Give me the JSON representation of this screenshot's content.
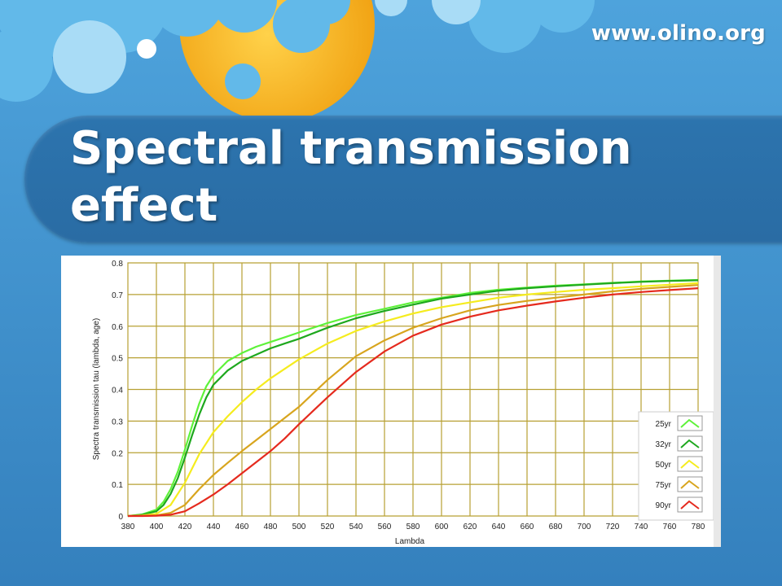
{
  "slide": {
    "site_url": "www.olino.org",
    "title": "Spectral transmission effect"
  },
  "colors": {
    "background": "#3a8cc8",
    "title_band": "#2a6ca4",
    "sun": "#f5b116",
    "cloud": "#5fb8e8",
    "grid": "#b7a033"
  },
  "chart_data": {
    "type": "line",
    "title": "",
    "xlabel": "Lambda",
    "ylabel": "Spectra transmission tau (lambda, age)",
    "xlim": [
      380,
      780
    ],
    "ylim": [
      0,
      0.8
    ],
    "xticks": [
      380,
      400,
      420,
      440,
      460,
      480,
      500,
      520,
      540,
      560,
      580,
      600,
      620,
      640,
      660,
      680,
      700,
      720,
      740,
      760,
      780
    ],
    "yticks": [
      0,
      0.1,
      0.2,
      0.3,
      0.4,
      0.5,
      0.6,
      0.7,
      0.8
    ],
    "yticklabels": [
      "0",
      "0.1",
      "0.2",
      "0.3",
      "0.4",
      "0.5",
      "0.6",
      "0.7",
      "0.8"
    ],
    "grid": true,
    "legend_position": "bottom-right",
    "series": [
      {
        "name": "25yr",
        "color": "#5ef23a",
        "x": [
          380,
          390,
          400,
          405,
          410,
          415,
          420,
          425,
          430,
          435,
          440,
          450,
          460,
          470,
          480,
          490,
          500,
          520,
          540,
          560,
          580,
          600,
          620,
          640,
          660,
          680,
          700,
          720,
          740,
          760,
          780
        ],
        "y": [
          0,
          0.005,
          0.02,
          0.045,
          0.085,
          0.14,
          0.21,
          0.285,
          0.355,
          0.41,
          0.445,
          0.49,
          0.515,
          0.535,
          0.55,
          0.565,
          0.58,
          0.61,
          0.635,
          0.655,
          0.675,
          0.69,
          0.705,
          0.715,
          0.722,
          0.728,
          0.732,
          0.737,
          0.741,
          0.744,
          0.746
        ]
      },
      {
        "name": "32yr",
        "color": "#1ea81e",
        "x": [
          380,
          390,
          400,
          405,
          410,
          415,
          420,
          425,
          430,
          435,
          440,
          450,
          460,
          470,
          480,
          490,
          500,
          520,
          540,
          560,
          580,
          600,
          620,
          640,
          660,
          680,
          700,
          720,
          740,
          760,
          780
        ],
        "y": [
          0,
          0.004,
          0.015,
          0.035,
          0.07,
          0.12,
          0.185,
          0.255,
          0.32,
          0.375,
          0.415,
          0.46,
          0.49,
          0.51,
          0.53,
          0.545,
          0.56,
          0.595,
          0.625,
          0.648,
          0.668,
          0.687,
          0.7,
          0.712,
          0.72,
          0.726,
          0.731,
          0.736,
          0.74,
          0.743,
          0.745
        ]
      },
      {
        "name": "50yr",
        "color": "#f5ec1e",
        "x": [
          380,
          390,
          400,
          410,
          420,
          430,
          440,
          450,
          460,
          470,
          480,
          490,
          500,
          520,
          540,
          560,
          580,
          600,
          620,
          640,
          660,
          680,
          700,
          720,
          740,
          760,
          780
        ],
        "y": [
          0,
          0.002,
          0.007,
          0.035,
          0.105,
          0.195,
          0.265,
          0.315,
          0.36,
          0.4,
          0.435,
          0.465,
          0.495,
          0.545,
          0.585,
          0.615,
          0.64,
          0.66,
          0.675,
          0.69,
          0.7,
          0.708,
          0.715,
          0.72,
          0.726,
          0.731,
          0.736
        ]
      },
      {
        "name": "75yr",
        "color": "#d8a51e",
        "x": [
          380,
          390,
          400,
          410,
          420,
          430,
          440,
          450,
          460,
          470,
          480,
          490,
          500,
          520,
          540,
          560,
          580,
          600,
          620,
          640,
          660,
          680,
          700,
          720,
          740,
          760,
          780
        ],
        "y": [
          0,
          0.001,
          0.002,
          0.01,
          0.035,
          0.085,
          0.13,
          0.168,
          0.205,
          0.24,
          0.275,
          0.31,
          0.345,
          0.43,
          0.505,
          0.555,
          0.595,
          0.625,
          0.65,
          0.667,
          0.68,
          0.69,
          0.7,
          0.71,
          0.718,
          0.724,
          0.73
        ]
      },
      {
        "name": "90yr",
        "color": "#e52a1e",
        "x": [
          380,
          390,
          400,
          410,
          420,
          430,
          440,
          450,
          460,
          470,
          480,
          490,
          500,
          520,
          540,
          560,
          580,
          600,
          620,
          640,
          660,
          680,
          700,
          720,
          740,
          760,
          780
        ],
        "y": [
          0,
          0,
          0.001,
          0.004,
          0.015,
          0.04,
          0.068,
          0.1,
          0.135,
          0.17,
          0.205,
          0.245,
          0.29,
          0.375,
          0.455,
          0.52,
          0.57,
          0.605,
          0.63,
          0.65,
          0.665,
          0.678,
          0.69,
          0.7,
          0.708,
          0.714,
          0.72
        ]
      }
    ]
  }
}
